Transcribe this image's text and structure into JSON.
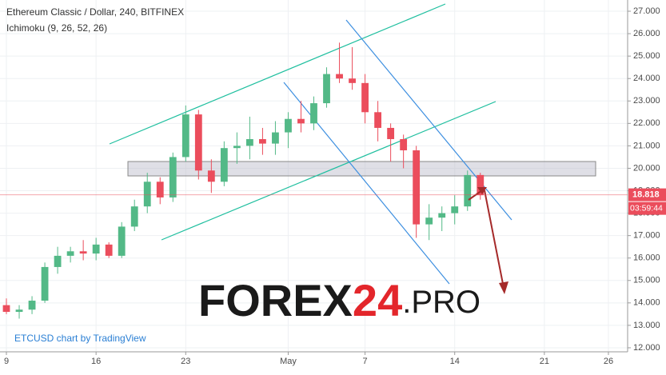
{
  "chart_data": {
    "type": "candlestick",
    "title": "Ethereum Classic / Dollar, 240, BITFINEX",
    "subtitle": "Ichimoku (9, 26, 52, 26)",
    "attribution": "ETCUSD chart by TradingView",
    "watermark": [
      "FOREX",
      "24",
      ".PRO"
    ],
    "up_color": "#53b987",
    "down_color": "#eb4d5c",
    "x": [
      0,
      1,
      2,
      3,
      4,
      5,
      6,
      7,
      8,
      9,
      10,
      11,
      12,
      13,
      14,
      15,
      16,
      17,
      18,
      19,
      20,
      21,
      22,
      23,
      24,
      25,
      26,
      27,
      28,
      29,
      30,
      31,
      32,
      33,
      34,
      35,
      36,
      37
    ],
    "open": [
      13.9,
      13.6,
      13.7,
      14.1,
      15.6,
      16.1,
      16.3,
      16.2,
      16.6,
      16.1,
      17.4,
      18.3,
      19.4,
      18.7,
      20.5,
      22.4,
      19.9,
      19.4,
      20.9,
      21.0,
      21.3,
      21.1,
      21.6,
      22.2,
      22.0,
      22.9,
      24.2,
      24.0,
      23.8,
      22.5,
      21.8,
      21.3,
      20.8,
      17.5,
      17.8,
      18.0,
      18.3,
      19.7
    ],
    "high": [
      14.2,
      13.9,
      14.3,
      15.8,
      16.5,
      16.5,
      16.8,
      16.9,
      16.7,
      17.6,
      18.6,
      19.8,
      19.6,
      20.7,
      22.8,
      22.6,
      20.4,
      21.2,
      21.6,
      22.3,
      21.8,
      22.1,
      22.5,
      23.0,
      23.2,
      24.5,
      25.6,
      25.4,
      24.2,
      23.0,
      22.0,
      21.5,
      21.0,
      18.4,
      18.3,
      18.8,
      19.9,
      19.8
    ],
    "low": [
      13.5,
      13.3,
      13.5,
      14.0,
      15.3,
      15.8,
      15.9,
      15.9,
      16.0,
      16.0,
      17.2,
      18.0,
      18.4,
      18.5,
      20.3,
      19.5,
      18.9,
      19.2,
      20.2,
      20.4,
      20.6,
      20.6,
      20.9,
      21.6,
      21.7,
      22.7,
      23.8,
      23.5,
      22.0,
      21.2,
      20.3,
      20.0,
      16.9,
      16.8,
      17.2,
      17.5,
      18.1,
      18.6
    ],
    "close": [
      13.6,
      13.7,
      14.1,
      15.6,
      16.1,
      16.3,
      16.2,
      16.6,
      16.1,
      17.4,
      18.3,
      19.4,
      18.7,
      20.5,
      22.4,
      19.9,
      19.4,
      20.9,
      21.0,
      21.3,
      21.1,
      21.6,
      22.2,
      22.0,
      22.9,
      24.2,
      24.0,
      23.8,
      22.5,
      21.8,
      21.3,
      20.8,
      17.5,
      17.8,
      18.0,
      18.3,
      19.7,
      18.8
    ],
    "xlim": [
      -0.5,
      48.5
    ],
    "xticks": [
      {
        "value": 0,
        "label": "9"
      },
      {
        "value": 7,
        "label": "16"
      },
      {
        "value": 14,
        "label": "23"
      },
      {
        "value": 22,
        "label": "May"
      },
      {
        "value": 28,
        "label": "7"
      },
      {
        "value": 35,
        "label": "14"
      },
      {
        "value": 42,
        "label": "21"
      },
      {
        "value": 47,
        "label": "26"
      }
    ],
    "ylim": [
      11.82,
      27.5
    ],
    "yticks": [
      {
        "value": 12,
        "label": "12.000"
      },
      {
        "value": 13,
        "label": "13.000"
      },
      {
        "value": 14,
        "label": "14.000"
      },
      {
        "value": 15,
        "label": "15.000"
      },
      {
        "value": 16,
        "label": "16.000"
      },
      {
        "value": 17,
        "label": "17.000"
      },
      {
        "value": 18,
        "label": "18.000"
      },
      {
        "value": 19,
        "label": "19.000"
      },
      {
        "value": 20,
        "label": "20.000"
      },
      {
        "value": 21,
        "label": "21.000"
      },
      {
        "value": 22,
        "label": "22.000"
      },
      {
        "value": 23,
        "label": "23.000"
      },
      {
        "value": 24,
        "label": "24.000"
      },
      {
        "value": 25,
        "label": "25.000"
      },
      {
        "value": 26,
        "label": "26.000"
      },
      {
        "value": 27,
        "label": "27.000"
      }
    ],
    "grid": true,
    "last_price": 18.818,
    "countdown": "03:59:44"
  }
}
